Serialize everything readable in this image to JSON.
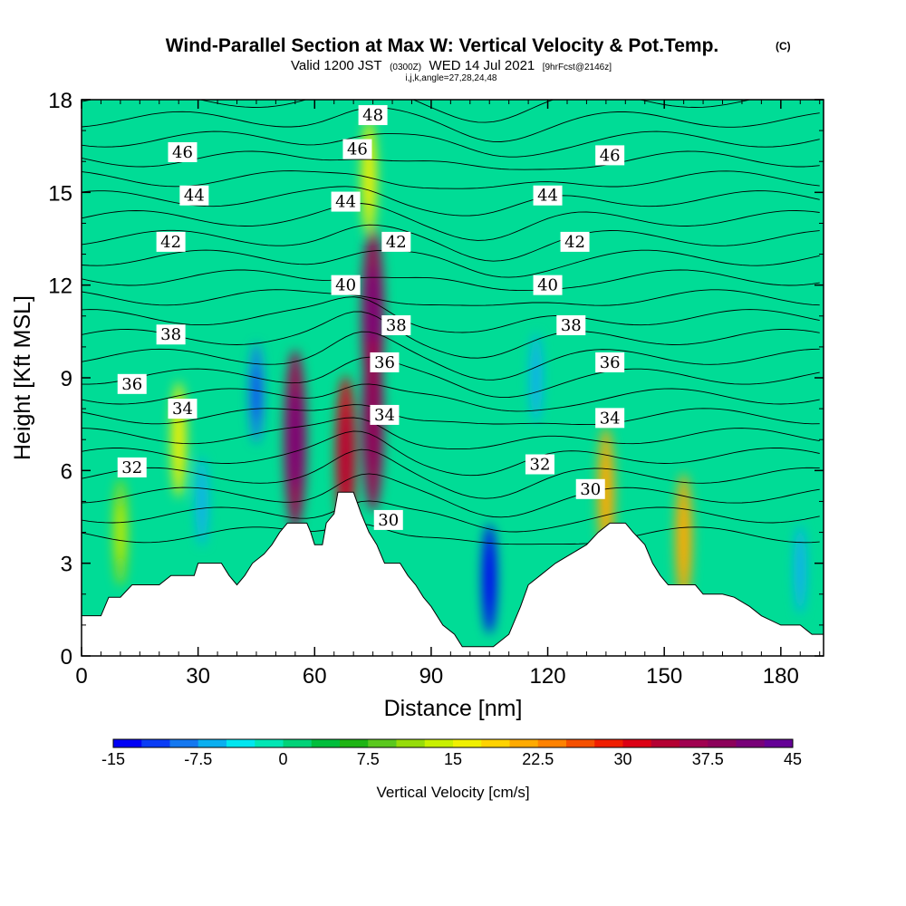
{
  "title": {
    "main": "Wind-Parallel Section at Max W: Vertical Velocity & Pot.Temp.",
    "copyright": "(C)",
    "valid_prefix": "Valid 1200 JST",
    "valid_utc": "(0300Z)",
    "valid_date": "WED 14 Jul 2021",
    "forecast": "[9hrFcst@2146z]",
    "indices": "i,j,k,angle=27,28,24,48"
  },
  "chart_data": {
    "type": "heatmap",
    "xlabel": "Distance [nm]",
    "ylabel": "Height [Kft MSL]",
    "xlim": [
      0,
      191
    ],
    "ylim": [
      0,
      18
    ],
    "xticks": [
      0,
      30,
      60,
      90,
      120,
      150,
      180
    ],
    "yticks": [
      0,
      3,
      6,
      9,
      12,
      15,
      18
    ],
    "grid": false,
    "terrain": [
      [
        0,
        1.3
      ],
      [
        5,
        1.3
      ],
      [
        7,
        1.9
      ],
      [
        10,
        1.9
      ],
      [
        13,
        2.3
      ],
      [
        20,
        2.3
      ],
      [
        23,
        2.6
      ],
      [
        29,
        2.6
      ],
      [
        30,
        3.0
      ],
      [
        36,
        3.0
      ],
      [
        38,
        2.6
      ],
      [
        40,
        2.3
      ],
      [
        42,
        2.6
      ],
      [
        44,
        3.0
      ],
      [
        47,
        3.3
      ],
      [
        49,
        3.6
      ],
      [
        51,
        4.0
      ],
      [
        53,
        4.3
      ],
      [
        58,
        4.3
      ],
      [
        59,
        4.0
      ],
      [
        60,
        3.6
      ],
      [
        62,
        3.6
      ],
      [
        63,
        4.3
      ],
      [
        65,
        4.6
      ],
      [
        66,
        5.3
      ],
      [
        70,
        5.3
      ],
      [
        72,
        4.6
      ],
      [
        74,
        4.0
      ],
      [
        76,
        3.6
      ],
      [
        78,
        3.0
      ],
      [
        82,
        3.0
      ],
      [
        84,
        2.6
      ],
      [
        86,
        2.3
      ],
      [
        88,
        1.9
      ],
      [
        90,
        1.6
      ],
      [
        93,
        1.0
      ],
      [
        96,
        0.7
      ],
      [
        98,
        0.3
      ],
      [
        106,
        0.3
      ],
      [
        110,
        0.7
      ],
      [
        113,
        1.6
      ],
      [
        115,
        2.3
      ],
      [
        118,
        2.6
      ],
      [
        122,
        3.0
      ],
      [
        126,
        3.3
      ],
      [
        130,
        3.6
      ],
      [
        133,
        4.0
      ],
      [
        136,
        4.3
      ],
      [
        140,
        4.3
      ],
      [
        142,
        4.0
      ],
      [
        145,
        3.6
      ],
      [
        147,
        3.0
      ],
      [
        149,
        2.6
      ],
      [
        151,
        2.3
      ],
      [
        158,
        2.3
      ],
      [
        160,
        2.0
      ],
      [
        165,
        2.0
      ],
      [
        168,
        1.9
      ],
      [
        172,
        1.6
      ],
      [
        175,
        1.3
      ],
      [
        180,
        1.0
      ],
      [
        185,
        1.0
      ],
      [
        188,
        0.7
      ],
      [
        191,
        0.7
      ]
    ],
    "vertical_velocity_features": [
      {
        "x": 75,
        "y": 11.0,
        "value": 37
      },
      {
        "x": 75,
        "y": 7.5,
        "value": 35
      },
      {
        "x": 55,
        "y": 7.0,
        "value": 37
      },
      {
        "x": 68,
        "y": 6.5,
        "value": 30
      },
      {
        "x": 74,
        "y": 15.5,
        "value": 15
      },
      {
        "x": 45,
        "y": 8.5,
        "value": -10
      },
      {
        "x": 105,
        "y": 2.5,
        "value": -13
      },
      {
        "x": 117,
        "y": 9.0,
        "value": -6
      },
      {
        "x": 135,
        "y": 5.3,
        "value": 20
      },
      {
        "x": 10,
        "y": 4.0,
        "value": 12
      },
      {
        "x": 185,
        "y": 2.8,
        "value": -6
      },
      {
        "x": 155,
        "y": 3.8,
        "value": 20
      },
      {
        "x": 31,
        "y": 5.0,
        "value": -6
      },
      {
        "x": 25,
        "y": 7.0,
        "value": 15
      }
    ],
    "theta_contour_labels": [
      {
        "text": "48",
        "x": 75,
        "y": 17.5
      },
      {
        "text": "46",
        "x": 26,
        "y": 16.3
      },
      {
        "text": "46",
        "x": 71,
        "y": 16.4
      },
      {
        "text": "46",
        "x": 136,
        "y": 16.2
      },
      {
        "text": "44",
        "x": 29,
        "y": 14.9
      },
      {
        "text": "44",
        "x": 68,
        "y": 14.7
      },
      {
        "text": "44",
        "x": 120,
        "y": 14.9
      },
      {
        "text": "42",
        "x": 23,
        "y": 13.4
      },
      {
        "text": "42",
        "x": 81,
        "y": 13.4
      },
      {
        "text": "42",
        "x": 127,
        "y": 13.4
      },
      {
        "text": "40",
        "x": 68,
        "y": 12.0
      },
      {
        "text": "40",
        "x": 120,
        "y": 12.0
      },
      {
        "text": "38",
        "x": 23,
        "y": 10.4
      },
      {
        "text": "38",
        "x": 81,
        "y": 10.7
      },
      {
        "text": "38",
        "x": 126,
        "y": 10.7
      },
      {
        "text": "36",
        "x": 13,
        "y": 8.8
      },
      {
        "text": "36",
        "x": 78,
        "y": 9.5
      },
      {
        "text": "36",
        "x": 136,
        "y": 9.5
      },
      {
        "text": "34",
        "x": 26,
        "y": 8.0
      },
      {
        "text": "34",
        "x": 78,
        "y": 7.8
      },
      {
        "text": "34",
        "x": 136,
        "y": 7.7
      },
      {
        "text": "32",
        "x": 13,
        "y": 6.1
      },
      {
        "text": "32",
        "x": 118,
        "y": 6.2
      },
      {
        "text": "30",
        "x": 131,
        "y": 5.4
      },
      {
        "text": "30",
        "x": 79,
        "y": 4.4
      }
    ],
    "colorbar": {
      "label": "Vertical Velocity [cm/s]",
      "ticks": [
        "-15",
        "-7.5",
        "0",
        "7.5",
        "15",
        "22.5",
        "30",
        "37.5",
        "45"
      ],
      "colors": [
        "#0000f5",
        "#0a3cf5",
        "#1478f0",
        "#0aaff0",
        "#00e6f0",
        "#00e6b4",
        "#00d278",
        "#00be3c",
        "#1eb414",
        "#5ac81e",
        "#96dc0a",
        "#c8f000",
        "#f0f000",
        "#ffd200",
        "#ffaa00",
        "#ff8200",
        "#f55000",
        "#f01e00",
        "#dc0014",
        "#b40032",
        "#a00050",
        "#8c005a",
        "#780078",
        "#640096"
      ]
    }
  }
}
